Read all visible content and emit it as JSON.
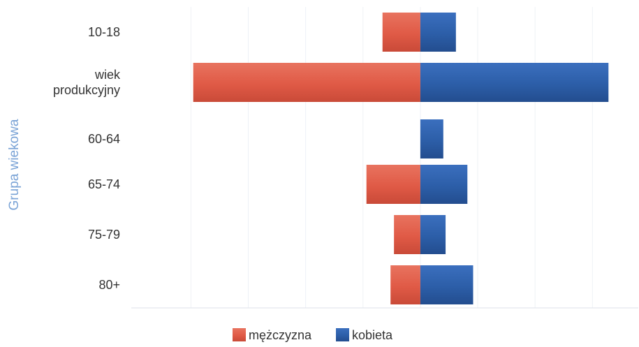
{
  "chart_data": {
    "type": "bar",
    "orientation": "horizontal",
    "stacking": "diverging",
    "ylabel": "Grupa wiekowa",
    "xlabel": "",
    "categories": [
      [
        "10-18"
      ],
      [
        "wiek",
        "produkcyjny"
      ],
      [
        "60-64"
      ],
      [
        "65-74"
      ],
      [
        "75-79"
      ],
      [
        "80+"
      ]
    ],
    "series": [
      {
        "name": "mężczyzna",
        "color": "#e05a46",
        "values": [
          -3.3,
          -19.8,
          0,
          -4.7,
          -2.3,
          -2.6
        ]
      },
      {
        "name": "kobieta",
        "color": "#2c5ea8",
        "values": [
          3.1,
          16.4,
          2.0,
          4.1,
          2.2,
          4.6
        ]
      }
    ],
    "xlim": [
      -25.2,
      19.0
    ],
    "gridlines": [
      -20,
      -15,
      -10,
      -5,
      0,
      5,
      10,
      15
    ],
    "grid": true,
    "legend": "bottom-center"
  }
}
